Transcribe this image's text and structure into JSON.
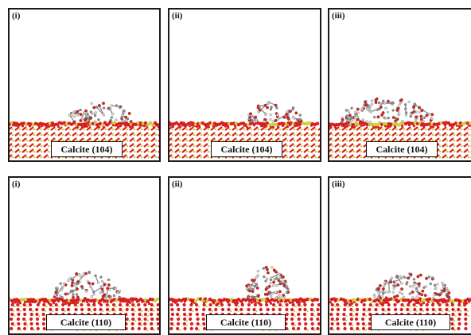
{
  "panels": [
    {
      "id": "p1",
      "label": "(i)",
      "surface": "Calcite (104)"
    },
    {
      "id": "p2",
      "label": "(ii)",
      "surface": "Calcite (104)"
    },
    {
      "id": "p3",
      "label": "(iii)",
      "surface": "Calcite (104)"
    },
    {
      "id": "p4",
      "label": "(i)",
      "surface": "Calcite (110)"
    },
    {
      "id": "p5",
      "label": "(ii)",
      "surface": "Calcite (110)"
    },
    {
      "id": "p6",
      "label": "(iii)",
      "surface": "Calcite (110)"
    }
  ],
  "colors": {
    "calcium": "#c9d23a",
    "oxygen": "#d81f1f",
    "carbon": "#8c8c8c",
    "hydrogen": "#d8d8d8",
    "frame": "#1a1a1a"
  }
}
